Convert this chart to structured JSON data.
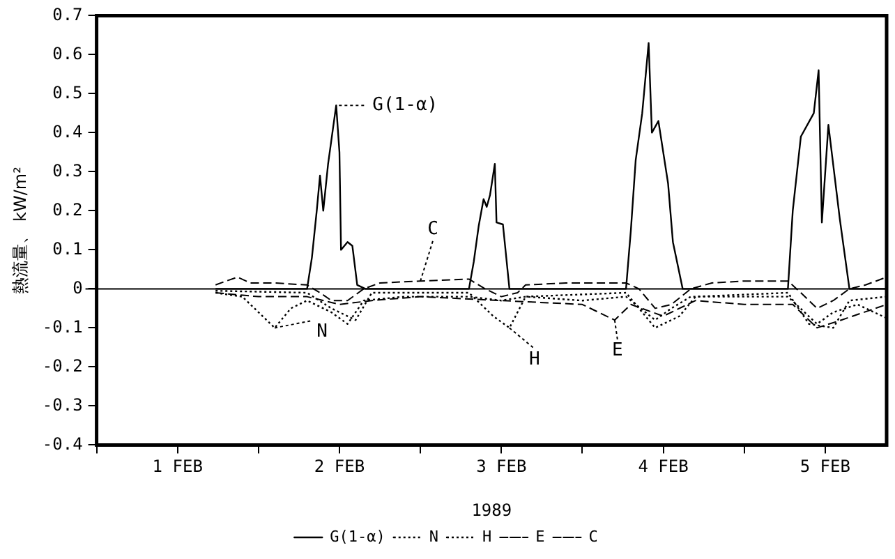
{
  "chart_data": {
    "type": "line",
    "xlabel": "1989",
    "ylabel": "熱流量、 kW/m²",
    "xlim": [
      "1989-02-01T00:00",
      "1989-02-05T21:07"
    ],
    "ylim": [
      -0.4,
      0.7
    ],
    "xticks": [
      {
        "value": "1989-02-01T00:00",
        "label": null
      },
      {
        "value": "1989-02-01T12:00",
        "label": "1 FEB"
      },
      {
        "value": "1989-02-02T00:00",
        "label": null
      },
      {
        "value": "1989-02-02T12:00",
        "label": "2 FEB"
      },
      {
        "value": "1989-02-03T00:00",
        "label": null
      },
      {
        "value": "1989-02-03T12:00",
        "label": "3 FEB"
      },
      {
        "value": "1989-02-04T00:00",
        "label": null
      },
      {
        "value": "1989-02-04T12:00",
        "label": "4 FEB"
      },
      {
        "value": "1989-02-05T00:00",
        "label": null
      },
      {
        "value": "1989-02-05T12:00",
        "label": "5 FEB"
      }
    ],
    "yticks": [
      {
        "value": -0.4,
        "label": "-0.4"
      },
      {
        "value": -0.3,
        "label": "-0.3"
      },
      {
        "value": -0.2,
        "label": "-0.2"
      },
      {
        "value": -0.1,
        "label": "-0.1"
      },
      0,
      0.1,
      0.2,
      0.3,
      0.4,
      0.5,
      0.6,
      0.7
    ],
    "grid": false,
    "legend": "bottom",
    "marker": "none",
    "ref_lines": [
      {
        "axis": "y",
        "value": 0,
        "color": "#000000"
      }
    ],
    "annotations": [
      {
        "text": "G(1-α)",
        "x": "1989-02-02T11:31",
        "y": 0.47
      },
      {
        "text": "C",
        "x": "1989-02-03T00:00",
        "y": 0.02
      },
      {
        "text": "N",
        "x": "1989-02-02T02:24",
        "y": -0.1
      },
      {
        "text": "H",
        "x": "1989-02-03T13:12",
        "y": -0.1
      },
      {
        "text": "E",
        "x": "1989-02-04T04:48",
        "y": -0.08
      }
    ],
    "series": [
      {
        "name": "G(1-α)",
        "color": "#000000",
        "line_style": "solid",
        "x": [
          "1989-02-01T17:38",
          "1989-02-02T07:12",
          "1989-02-02T07:55",
          "1989-02-02T08:38",
          "1989-02-02T09:07",
          "1989-02-02T09:36",
          "1989-02-02T10:19",
          "1989-02-02T11:02",
          "1989-02-02T11:31",
          "1989-02-02T12:00",
          "1989-02-02T12:14",
          "1989-02-02T13:12",
          "1989-02-02T13:55",
          "1989-02-02T14:38",
          "1989-02-02T15:50",
          "1989-02-03T07:12",
          "1989-02-03T07:55",
          "1989-02-03T08:38",
          "1989-02-03T09:22",
          "1989-02-03T09:50",
          "1989-02-03T10:19",
          "1989-02-03T11:02",
          "1989-02-03T11:17",
          "1989-02-03T12:14",
          "1989-02-03T13:12",
          "1989-02-04T06:29",
          "1989-02-04T07:12",
          "1989-02-04T07:55",
          "1989-02-04T08:53",
          "1989-02-04T09:50",
          "1989-02-04T10:19",
          "1989-02-04T11:17",
          "1989-02-04T12:43",
          "1989-02-04T13:26",
          "1989-02-04T14:53",
          "1989-02-05T06:29",
          "1989-02-05T07:12",
          "1989-02-05T08:24",
          "1989-02-05T10:19",
          "1989-02-05T11:02",
          "1989-02-05T11:31",
          "1989-02-05T12:29",
          "1989-02-05T14:10",
          "1989-02-05T15:36",
          "1989-02-05T21:07"
        ],
        "values": [
          0,
          0,
          0.08,
          0.2,
          0.29,
          0.2,
          0.32,
          0.41,
          0.47,
          0.35,
          0.1,
          0.12,
          0.11,
          0.01,
          0,
          0,
          0.07,
          0.16,
          0.23,
          0.21,
          0.24,
          0.32,
          0.17,
          0.165,
          0,
          0,
          0.15,
          0.33,
          0.45,
          0.63,
          0.4,
          0.43,
          0.27,
          0.12,
          0,
          0,
          0.2,
          0.39,
          0.45,
          0.56,
          0.17,
          0.42,
          0.18,
          0,
          0
        ]
      },
      {
        "name": "N",
        "color": "#000000",
        "line_style": "dotted",
        "x": [
          "1989-02-01T17:38",
          "1989-02-01T21:36",
          "1989-02-02T00:00",
          "1989-02-02T02:24",
          "1989-02-02T04:48",
          "1989-02-02T07:12",
          "1989-02-02T10:48",
          "1989-02-02T13:12",
          "1989-02-02T15:36",
          "1989-02-02T21:36",
          "1989-02-03T07:12",
          "1989-02-03T12:00",
          "1989-02-03T15:36",
          "1989-02-04T00:00",
          "1989-02-04T06:29",
          "1989-02-04T10:48",
          "1989-02-04T13:12",
          "1989-02-04T16:05",
          "1989-02-05T00:00",
          "1989-02-05T06:29",
          "1989-02-05T10:48",
          "1989-02-05T13:12",
          "1989-02-05T16:48",
          "1989-02-05T21:07"
        ],
        "values": [
          -0.01,
          -0.02,
          -0.06,
          -0.1,
          -0.05,
          -0.03,
          -0.06,
          -0.09,
          -0.03,
          -0.02,
          -0.02,
          -0.03,
          -0.02,
          -0.03,
          -0.02,
          -0.08,
          -0.05,
          -0.02,
          -0.02,
          -0.02,
          -0.09,
          -0.06,
          -0.04,
          -0.075
        ]
      },
      {
        "name": "H",
        "color": "#000000",
        "line_style": "dotted",
        "x": [
          "1989-02-01T17:38",
          "1989-02-02T07:12",
          "1989-02-02T10:48",
          "1989-02-02T14:24",
          "1989-02-02T16:48",
          "1989-02-03T07:12",
          "1989-02-03T10:48",
          "1989-02-03T13:12",
          "1989-02-03T15:36",
          "1989-02-04T06:29",
          "1989-02-04T10:48",
          "1989-02-04T14:24",
          "1989-02-04T16:48",
          "1989-02-05T06:29",
          "1989-02-05T09:36",
          "1989-02-05T13:12",
          "1989-02-05T15:36",
          "1989-02-05T21:07"
        ],
        "values": [
          -0.005,
          -0.01,
          -0.05,
          -0.08,
          -0.01,
          -0.01,
          -0.07,
          -0.1,
          -0.02,
          -0.01,
          -0.1,
          -0.07,
          -0.02,
          -0.01,
          -0.09,
          -0.1,
          -0.03,
          -0.02
        ]
      },
      {
        "name": "E",
        "color": "#000000",
        "line_style": "dashed",
        "x": [
          "1989-02-01T17:38",
          "1989-02-02T00:00",
          "1989-02-02T07:12",
          "1989-02-02T12:00",
          "1989-02-02T16:48",
          "1989-02-03T00:00",
          "1989-02-03T12:00",
          "1989-02-04T00:00",
          "1989-02-04T04:48",
          "1989-02-04T07:12",
          "1989-02-04T12:00",
          "1989-02-04T16:48",
          "1989-02-05T00:00",
          "1989-02-05T07:12",
          "1989-02-05T10:48",
          "1989-02-05T14:24",
          "1989-02-05T21:07"
        ],
        "values": [
          -0.01,
          -0.02,
          -0.02,
          -0.04,
          -0.03,
          -0.02,
          -0.03,
          -0.04,
          -0.08,
          -0.04,
          -0.07,
          -0.03,
          -0.04,
          -0.04,
          -0.1,
          -0.08,
          -0.04
        ]
      },
      {
        "name": "C",
        "color": "#000000",
        "line_style": "dashed",
        "x": [
          "1989-02-01T17:38",
          "1989-02-01T19:12",
          "1989-02-01T20:53",
          "1989-02-01T22:48",
          "1989-02-02T02:24",
          "1989-02-02T07:12",
          "1989-02-02T09:07",
          "1989-02-02T10:48",
          "1989-02-02T13:12",
          "1989-02-02T15:36",
          "1989-02-02T18:00",
          "1989-02-03T00:00",
          "1989-02-03T07:12",
          "1989-02-03T09:36",
          "1989-02-03T12:00",
          "1989-02-03T14:24",
          "1989-02-03T15:36",
          "1989-02-03T21:36",
          "1989-02-04T06:29",
          "1989-02-04T08:24",
          "1989-02-04T10:48",
          "1989-02-04T13:12",
          "1989-02-04T16:05",
          "1989-02-04T19:12",
          "1989-02-05T00:00",
          "1989-02-05T06:29",
          "1989-02-05T08:24",
          "1989-02-05T10:48",
          "1989-02-05T13:12",
          "1989-02-05T15:36",
          "1989-02-05T18:00",
          "1989-02-05T21:07"
        ],
        "values": [
          0.01,
          0.02,
          0.03,
          0.015,
          0.015,
          0.01,
          -0.01,
          -0.03,
          -0.03,
          0,
          0.015,
          0.02,
          0.025,
          0,
          -0.02,
          -0.01,
          0.01,
          0.015,
          0.015,
          0,
          -0.05,
          -0.04,
          0,
          0.015,
          0.02,
          0.02,
          -0.01,
          -0.05,
          -0.03,
          0,
          0.01,
          0.03
        ]
      }
    ]
  }
}
